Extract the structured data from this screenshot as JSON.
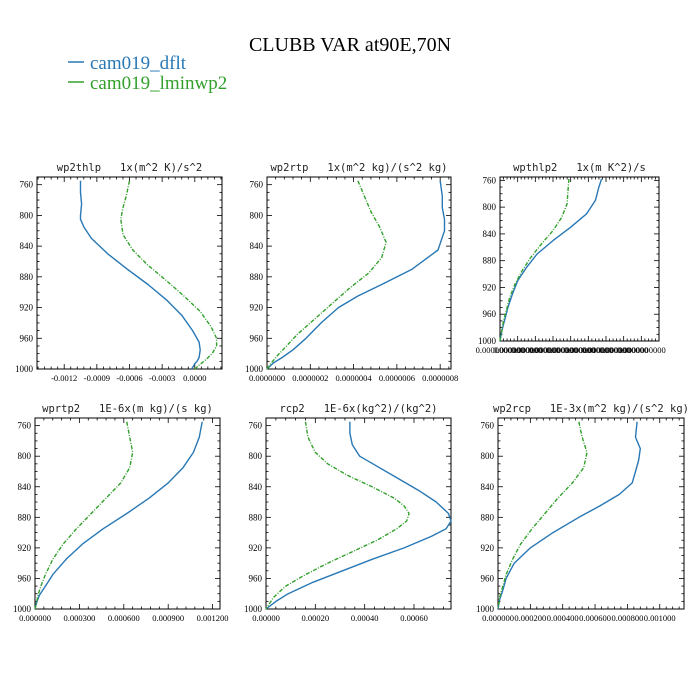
{
  "figure": {
    "title": "CLUBB VAR at90E,70N",
    "legend": [
      {
        "label": "cam019_dflt",
        "color": "#2878b5"
      },
      {
        "label": "cam019_lminwp2",
        "color": "#33a02c"
      }
    ]
  },
  "chart_data": [
    {
      "type": "line",
      "title": "wp2thlp   1x(m^2 K)/s^2",
      "xlim": [
        -0.00145,
        0.00025
      ],
      "ylim": [
        1000,
        750
      ],
      "xticks": [
        -0.0012,
        -0.0009,
        -0.0006,
        -0.0003,
        0.0
      ],
      "xtick_labels": [
        "-0.0012",
        "-0.0009",
        "-0.0006",
        "-0.0003",
        "0.0000"
      ],
      "yticks": [
        760,
        800,
        840,
        880,
        920,
        960,
        1000
      ],
      "series": [
        {
          "name": "cam019_dflt",
          "y": [
            755,
            770,
            785,
            800,
            805,
            815,
            830,
            850,
            870,
            890,
            910,
            930,
            950,
            965,
            975,
            985,
            990,
            993,
            996,
            1000
          ],
          "x": [
            -0.00105,
            -0.00105,
            -0.00104,
            -0.00105,
            -0.00105,
            -0.00102,
            -0.00095,
            -0.0008,
            -0.00062,
            -0.00043,
            -0.00026,
            -0.00012,
            -2e-05,
            4e-05,
            5e-05,
            4e-05,
            2e-05,
            0.0,
            -1e-05,
            -3e-05
          ]
        },
        {
          "name": "cam019_lminwp2",
          "y": [
            755,
            775,
            790,
            805,
            825,
            845,
            865,
            885,
            905,
            925,
            945,
            960,
            970,
            980,
            988,
            995,
            1000
          ],
          "x": [
            -0.0006,
            -0.00063,
            -0.00066,
            -0.00068,
            -0.00066,
            -0.00057,
            -0.00043,
            -0.00026,
            -0.0001,
            5e-05,
            0.00015,
            0.0002,
            0.0002,
            0.00016,
            0.0001,
            4e-05,
            0.0
          ]
        }
      ]
    },
    {
      "type": "line",
      "title": "wp2rtp   1x(m^2 kg)/(s^2 kg)",
      "xlim": [
        0.0,
        8.5e-07
      ],
      "ylim": [
        1000,
        750
      ],
      "xticks": [
        0.0,
        2e-07,
        4e-07,
        6e-07,
        8e-07
      ],
      "xtick_labels": [
        "0.0000000",
        "0.0000002",
        "0.0000004",
        "0.0000006",
        "0.0000008"
      ],
      "yticks": [
        760,
        800,
        840,
        880,
        920,
        960,
        1000
      ],
      "series": [
        {
          "name": "cam019_dflt",
          "y": [
            755,
            775,
            790,
            805,
            820,
            845,
            870,
            890,
            905,
            920,
            940,
            960,
            975,
            985,
            992,
            1000
          ],
          "x": [
            8e-07,
            8.1e-07,
            8.1e-07,
            8.2e-07,
            8.2e-07,
            7.9e-07,
            6.7e-07,
            5.3e-07,
            4.2e-07,
            3.3e-07,
            2.5e-07,
            1.8e-07,
            1.2e-07,
            7e-08,
            3e-08,
            0.0
          ]
        },
        {
          "name": "cam019_lminwp2",
          "y": [
            755,
            775,
            795,
            815,
            835,
            855,
            875,
            895,
            915,
            935,
            955,
            970,
            982,
            992,
            1000
          ],
          "x": [
            4.2e-07,
            4.5e-07,
            4.8e-07,
            5.2e-07,
            5.5e-07,
            5.3e-07,
            4.7e-07,
            3.8e-07,
            3e-07,
            2.2e-07,
            1.4e-07,
            9e-08,
            5e-08,
            2e-08,
            0.0
          ]
        }
      ]
    },
    {
      "type": "line",
      "title": "wpthlp2   1x(m K^2)/s",
      "xlim": [
        0.0,
        1.8e-07
      ],
      "ylim": [
        1000,
        755
      ],
      "xticks": [
        0.0,
        2e-08,
        4e-08,
        6e-08,
        8e-08,
        1e-07,
        1.2e-07,
        1.4e-07,
        1.6e-07
      ],
      "xtick_labels": [
        "0.0000000000",
        "0.0000000000",
        "0.0000000000",
        "0.0000000000",
        "0.0000000000",
        "0.0000000000",
        "0.0000000000",
        "0.0000000000",
        "0.0000000000"
      ],
      "yticks": [
        760,
        800,
        840,
        880,
        920,
        960,
        1000
      ],
      "series": [
        {
          "name": "cam019_dflt",
          "y": [
            758,
            770,
            790,
            810,
            830,
            850,
            870,
            890,
            910,
            930,
            950,
            965,
            975,
            985,
            992,
            1000
          ],
          "x": [
            1.15e-07,
            1.12e-07,
            1.08e-07,
            9.8e-08,
            8e-08,
            6e-08,
            4.2e-08,
            3e-08,
            2e-08,
            1.4e-08,
            9e-09,
            6e-09,
            4e-09,
            2e-09,
            1e-09,
            0.0
          ]
        },
        {
          "name": "cam019_lminwp2",
          "y": [
            758,
            775,
            795,
            815,
            835,
            855,
            875,
            895,
            915,
            935,
            955,
            970,
            985,
            993,
            1000
          ],
          "x": [
            7.8e-08,
            7.7e-08,
            7.6e-08,
            7e-08,
            6e-08,
            4.7e-08,
            3.5e-08,
            2.5e-08,
            1.7e-08,
            1.1e-08,
            7e-09,
            4e-09,
            2e-09,
            1e-09,
            0.0
          ]
        }
      ]
    },
    {
      "type": "line",
      "title": "wprtp2   1E-6x(m kg)/(s kg)",
      "xlim": [
        0.0,
        0.00125
      ],
      "ylim": [
        1000,
        750
      ],
      "xticks": [
        0.0,
        0.0003,
        0.0006,
        0.0009,
        0.0012
      ],
      "xtick_labels": [
        "0.000000",
        "0.000300",
        "0.000600",
        "0.000900",
        "0.001200"
      ],
      "yticks": [
        760,
        800,
        840,
        880,
        920,
        960,
        1000
      ],
      "series": [
        {
          "name": "cam019_dflt",
          "y": [
            755,
            775,
            795,
            815,
            835,
            855,
            875,
            895,
            915,
            935,
            955,
            970,
            982,
            992,
            1000
          ],
          "x": [
            0.00113,
            0.00111,
            0.00107,
            0.001,
            0.0009,
            0.00077,
            0.00062,
            0.00046,
            0.00032,
            0.00021,
            0.00012,
            7e-05,
            3e-05,
            1e-05,
            0.0
          ]
        },
        {
          "name": "cam019_lminwp2",
          "y": [
            755,
            775,
            795,
            815,
            835,
            855,
            875,
            895,
            915,
            935,
            955,
            970,
            982,
            992,
            1000
          ],
          "x": [
            0.00062,
            0.00064,
            0.00066,
            0.00064,
            0.00058,
            0.00048,
            0.00038,
            0.00028,
            0.00019,
            0.00012,
            7e-05,
            4e-05,
            2e-05,
            1e-05,
            0.0
          ]
        }
      ]
    },
    {
      "type": "line",
      "title": "rcp2   1E-6x(kg^2)/(kg^2)",
      "xlim": [
        0.0,
        0.00075
      ],
      "ylim": [
        1000,
        750
      ],
      "xticks": [
        0.0,
        0.0002,
        0.0004,
        0.0006
      ],
      "xtick_labels": [
        "0.00000",
        "0.00020",
        "0.00040",
        "0.00060"
      ],
      "yticks": [
        760,
        800,
        840,
        880,
        920,
        960,
        1000
      ],
      "series": [
        {
          "name": "cam019_dflt",
          "y": [
            755,
            770,
            785,
            800,
            815,
            830,
            845,
            860,
            875,
            885,
            895,
            905,
            920,
            935,
            950,
            965,
            980,
            990,
            1000
          ],
          "x": [
            0.00034,
            0.00034,
            0.00035,
            0.00038,
            0.00046,
            0.00054,
            0.00062,
            0.00069,
            0.00074,
            0.00075,
            0.00073,
            0.00067,
            0.00056,
            0.00043,
            0.00031,
            0.00019,
            9e-05,
            4e-05,
            0.0
          ]
        },
        {
          "name": "cam019_lminwp2",
          "y": [
            755,
            775,
            795,
            810,
            825,
            840,
            855,
            865,
            875,
            885,
            895,
            910,
            925,
            940,
            955,
            970,
            985,
            1000
          ],
          "x": [
            0.00016,
            0.00017,
            0.0002,
            0.00025,
            0.00033,
            0.00043,
            0.00052,
            0.00056,
            0.00058,
            0.00057,
            0.00053,
            0.00045,
            0.00035,
            0.00025,
            0.00016,
            8e-05,
            3e-05,
            0.0
          ]
        }
      ]
    },
    {
      "type": "line",
      "title": "wp2rcp   1E-3x(m^2 kg)/(s^2 kg)",
      "xlim": [
        0.0,
        0.00115
      ],
      "ylim": [
        1000,
        750
      ],
      "xticks": [
        0.0,
        0.0002,
        0.0004,
        0.0006,
        0.0008,
        0.001
      ],
      "xtick_labels": [
        "0.000000",
        "0.000200",
        "0.000400",
        "0.000600",
        "0.000800",
        "0.001000"
      ],
      "yticks": [
        760,
        800,
        840,
        880,
        920,
        960,
        1000
      ],
      "series": [
        {
          "name": "cam019_dflt",
          "y": [
            755,
            775,
            790,
            805,
            820,
            835,
            850,
            865,
            880,
            900,
            920,
            940,
            960,
            975,
            988,
            1000
          ],
          "x": [
            0.00086,
            0.00085,
            0.00088,
            0.00087,
            0.00085,
            0.00083,
            0.00075,
            0.00063,
            0.0005,
            0.00034,
            0.0002,
            0.0001,
            5e-05,
            3e-05,
            1e-05,
            0.0
          ]
        },
        {
          "name": "cam019_lminwp2",
          "y": [
            755,
            775,
            795,
            815,
            835,
            855,
            875,
            895,
            915,
            935,
            955,
            970,
            985,
            1000
          ],
          "x": [
            0.0005,
            0.00052,
            0.00055,
            0.00053,
            0.00046,
            0.00037,
            0.00029,
            0.00021,
            0.00014,
            9e-05,
            5e-05,
            3e-05,
            1e-05,
            0.0
          ]
        }
      ]
    }
  ]
}
